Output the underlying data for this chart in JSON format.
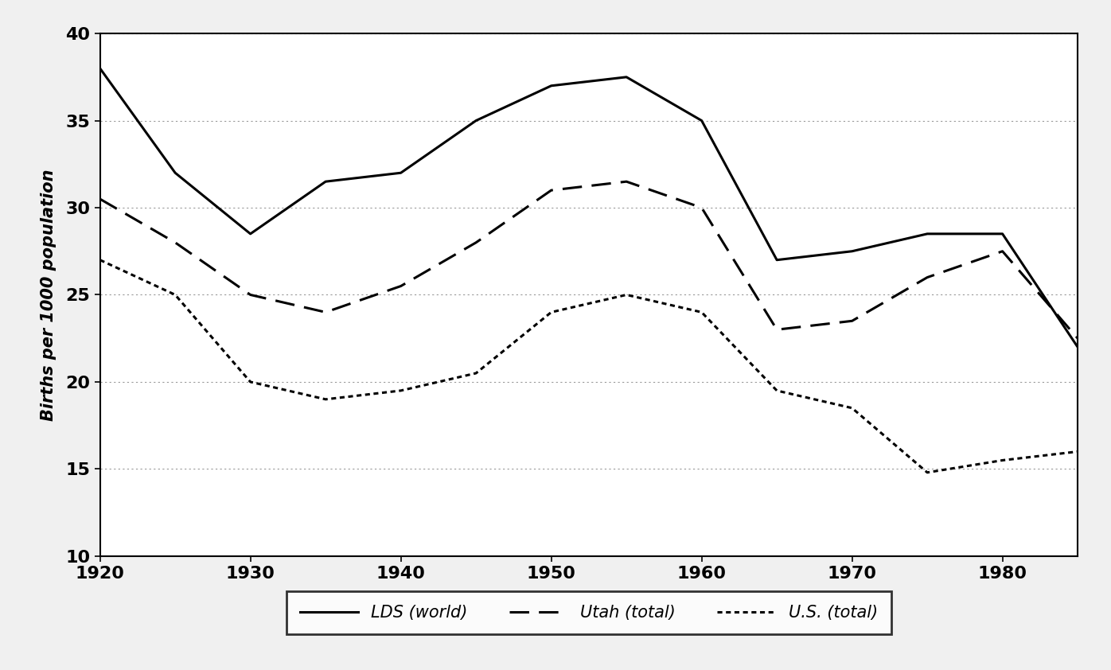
{
  "ylabel": "Births per 1000 population",
  "xlim": [
    1920,
    1985
  ],
  "ylim": [
    10,
    40
  ],
  "yticks": [
    10,
    15,
    20,
    25,
    30,
    35,
    40
  ],
  "xticks": [
    1920,
    1930,
    1940,
    1950,
    1960,
    1970,
    1980
  ],
  "background_color": "#f0f0f0",
  "plot_bg_color": "#ffffff",
  "grid_color": "#999999",
  "lds_x": [
    1920,
    1925,
    1930,
    1935,
    1940,
    1945,
    1950,
    1955,
    1960,
    1965,
    1970,
    1975,
    1980,
    1985
  ],
  "lds_y": [
    38.0,
    32.0,
    28.5,
    31.5,
    32.0,
    35.0,
    37.0,
    37.5,
    35.0,
    27.0,
    27.5,
    28.5,
    28.5,
    22.0
  ],
  "utah_x": [
    1920,
    1925,
    1930,
    1935,
    1940,
    1945,
    1950,
    1955,
    1960,
    1965,
    1970,
    1975,
    1980,
    1985
  ],
  "utah_y": [
    30.5,
    28.0,
    25.0,
    24.0,
    25.5,
    28.0,
    31.0,
    31.5,
    30.0,
    23.0,
    23.5,
    26.0,
    27.5,
    22.5
  ],
  "us_x": [
    1920,
    1925,
    1930,
    1935,
    1940,
    1945,
    1950,
    1955,
    1960,
    1965,
    1970,
    1975,
    1980,
    1985
  ],
  "us_y": [
    27.0,
    25.0,
    20.0,
    19.0,
    19.5,
    20.5,
    24.0,
    25.0,
    24.0,
    19.5,
    18.5,
    14.8,
    15.5,
    16.0
  ],
  "legend_labels": [
    "LDS (world)",
    "Utah (total)",
    "U.S. (total)"
  ],
  "line_color": "#000000",
  "line_width": 2.2
}
